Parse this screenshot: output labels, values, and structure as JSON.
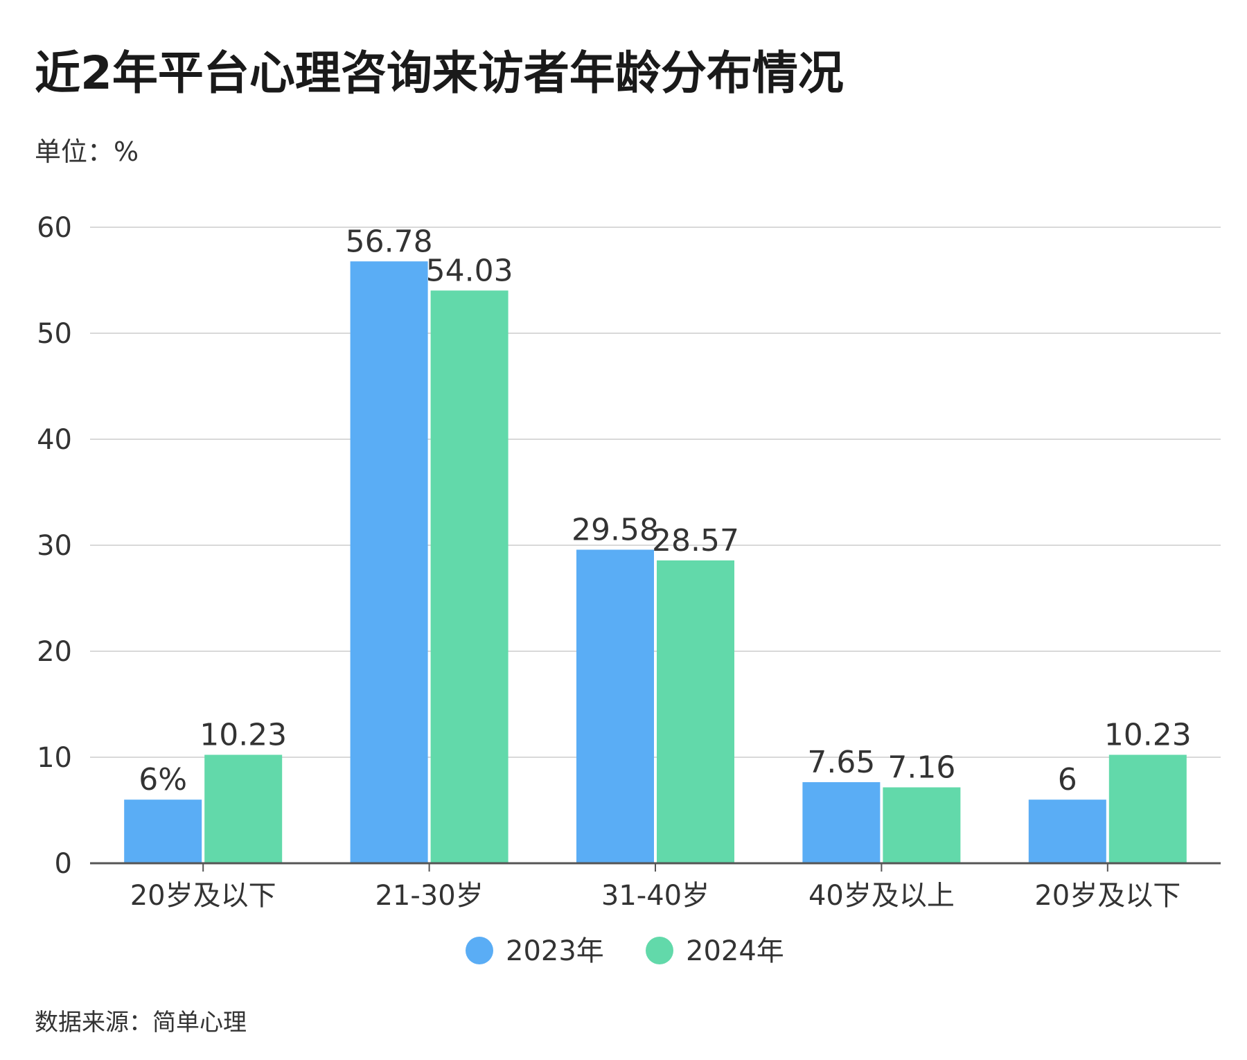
{
  "title": "近2年平台心理咨询来访者年龄分布情况",
  "unit_label": "单位：%",
  "source_label": "数据来源：简单心理",
  "colors": {
    "2023年": "#5AADF5",
    "2024年": "#62D9AA",
    "grid": "#d9d9d9",
    "axis": "#555555"
  },
  "chart_data": {
    "type": "bar",
    "categories": [
      "20岁及以下",
      "21-30岁",
      "31-40岁",
      "40岁及以上",
      "20岁及以下"
    ],
    "series": [
      {
        "name": "2023年",
        "values": [
          6,
          56.78,
          29.58,
          7.65,
          6
        ],
        "labels": [
          "6%",
          "56.78",
          "29.58",
          "7.65",
          "6"
        ]
      },
      {
        "name": "2024年",
        "values": [
          10.23,
          54.03,
          28.57,
          7.16,
          10.23
        ],
        "labels": [
          "10.23",
          "54.03",
          "28.57",
          "7.16",
          "10.23"
        ]
      }
    ],
    "ylim": [
      0,
      60
    ],
    "yticks": [
      0,
      10,
      20,
      30,
      40,
      50,
      60
    ],
    "grid": true,
    "legend_position": "bottom-center"
  }
}
